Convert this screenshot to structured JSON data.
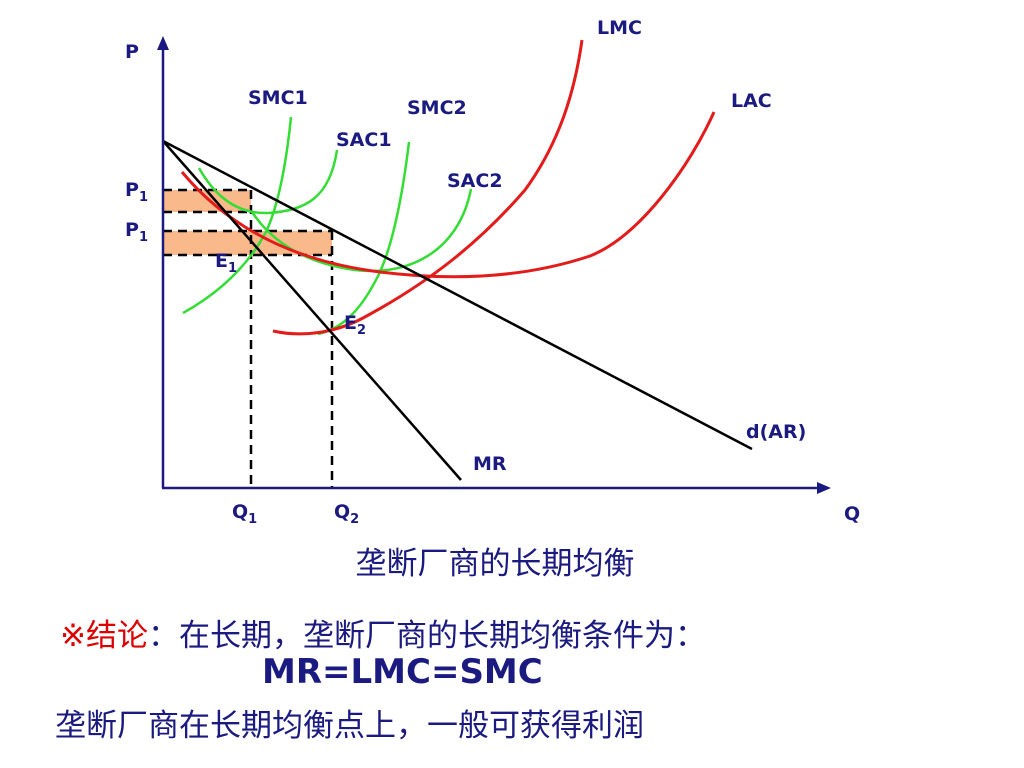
{
  "axes": {
    "y_label": "P",
    "x_label": "Q"
  },
  "curves": {
    "lmc": "LMC",
    "lac": "LAC",
    "smc1": "SMC1",
    "smc2": "SMC2",
    "sac1": "SAC1",
    "sac2": "SAC2",
    "demand": "d(AR)",
    "mr": "MR"
  },
  "prices": {
    "p_upper": "P",
    "p_upper_sub": "1",
    "p_lower": "P",
    "p_lower_sub": "1"
  },
  "points": {
    "e1": "E",
    "e1_sub": "1",
    "e2": "E",
    "e2_sub": "2"
  },
  "quantities": {
    "q1": "Q",
    "q1_sub": "1",
    "q2": "Q",
    "q2_sub": "2"
  },
  "caption": "垄断厂商的长期均衡",
  "conclusion": {
    "mark": "※结论",
    "text": "：在长期，垄断厂商的长期均衡条件为：",
    "formula": "MR=LMC=SMC",
    "note": "垄断厂商在长期均衡点上，一般可获得利润"
  },
  "colors": {
    "text": "#1a1a80",
    "long_run": "#e31b1b",
    "short_run": "#33dd33",
    "profit": "#f9b98a",
    "mark": "#dd0000"
  }
}
